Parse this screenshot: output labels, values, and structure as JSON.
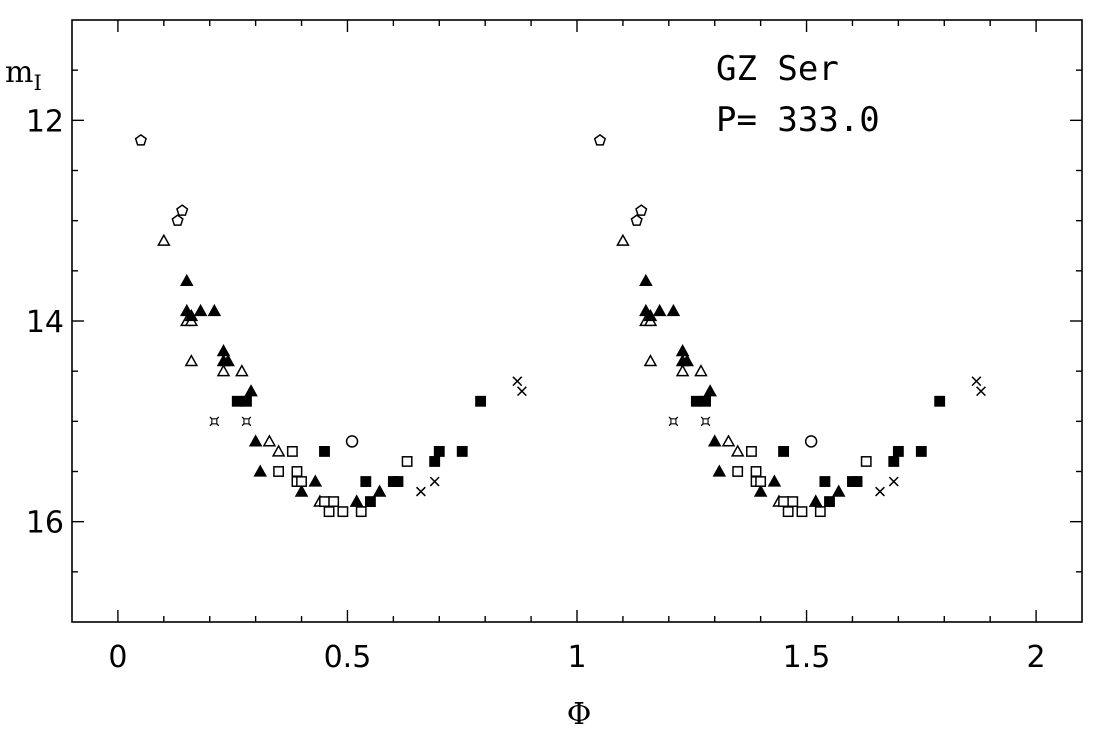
{
  "chart_data": {
    "type": "scatter",
    "title": "",
    "xlabel": "Φ",
    "ylabel_main": "m",
    "ylabel_sub": "I",
    "xlim": [
      -0.1,
      2.1
    ],
    "ylim": [
      17.0,
      11.0
    ],
    "y_inverted": true,
    "grid": false,
    "x_ticks": [
      0,
      0.5,
      1,
      1.5,
      2
    ],
    "x_tick_labels": [
      "0",
      "0.5",
      "1",
      "1.5",
      "2"
    ],
    "y_ticks": [
      12,
      14,
      16
    ],
    "y_tick_labels": [
      "12",
      "14",
      "16"
    ],
    "annotations": {
      "star": "GZ Ser",
      "period": "P= 333.0"
    },
    "phase_repeat": 1.0,
    "series": [
      {
        "marker": "pentagon-open",
        "points": [
          [
            0.05,
            12.2
          ],
          [
            0.13,
            13.0
          ],
          [
            0.14,
            12.9
          ]
        ]
      },
      {
        "marker": "triangle-open",
        "points": [
          [
            0.1,
            13.2
          ],
          [
            0.15,
            14.0
          ],
          [
            0.16,
            14.0
          ],
          [
            0.16,
            14.4
          ],
          [
            0.23,
            14.5
          ],
          [
            0.27,
            14.5
          ],
          [
            0.33,
            15.2
          ],
          [
            0.35,
            15.3
          ],
          [
            0.44,
            15.8
          ],
          [
            0.52,
            15.8
          ]
        ]
      },
      {
        "marker": "triangle-filled",
        "points": [
          [
            0.15,
            13.6
          ],
          [
            0.15,
            13.9
          ],
          [
            0.16,
            13.95
          ],
          [
            0.18,
            13.9
          ],
          [
            0.21,
            13.9
          ],
          [
            0.23,
            14.3
          ],
          [
            0.23,
            14.4
          ],
          [
            0.24,
            14.4
          ],
          [
            0.29,
            14.7
          ],
          [
            0.3,
            15.2
          ],
          [
            0.31,
            15.5
          ],
          [
            0.4,
            15.7
          ],
          [
            0.43,
            15.6
          ],
          [
            0.52,
            15.8
          ],
          [
            0.57,
            15.7
          ]
        ]
      },
      {
        "marker": "square-filled",
        "points": [
          [
            0.26,
            14.8
          ],
          [
            0.28,
            14.8
          ],
          [
            0.45,
            15.3
          ],
          [
            0.54,
            15.6
          ],
          [
            0.55,
            15.8
          ],
          [
            0.6,
            15.6
          ],
          [
            0.61,
            15.6
          ],
          [
            0.69,
            15.4
          ],
          [
            0.7,
            15.3
          ],
          [
            0.75,
            15.3
          ],
          [
            0.79,
            14.8
          ]
        ]
      },
      {
        "marker": "square-open",
        "points": [
          [
            0.35,
            15.5
          ],
          [
            0.38,
            15.3
          ],
          [
            0.39,
            15.5
          ],
          [
            0.39,
            15.6
          ],
          [
            0.4,
            15.6
          ],
          [
            0.45,
            15.8
          ],
          [
            0.46,
            15.9
          ],
          [
            0.47,
            15.8
          ],
          [
            0.49,
            15.9
          ],
          [
            0.53,
            15.9
          ],
          [
            0.63,
            15.4
          ]
        ]
      },
      {
        "marker": "star-open",
        "points": [
          [
            0.21,
            15.0
          ],
          [
            0.28,
            15.0
          ]
        ]
      },
      {
        "marker": "circle-open",
        "points": [
          [
            0.51,
            15.2
          ]
        ]
      },
      {
        "marker": "cross",
        "points": [
          [
            0.66,
            15.7
          ],
          [
            0.69,
            15.6
          ],
          [
            0.87,
            14.6
          ],
          [
            0.88,
            14.7
          ]
        ]
      }
    ]
  }
}
